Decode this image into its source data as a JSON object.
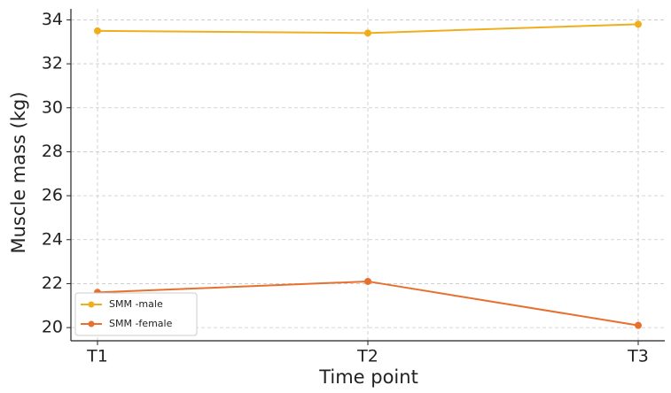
{
  "chart_data": {
    "type": "line",
    "xlabel": "Time point",
    "ylabel": "Muscle mass (kg)",
    "categories": [
      "T1",
      "T2",
      "T3"
    ],
    "series": [
      {
        "name": "SMM -male",
        "color": "#f0ae1c",
        "values": [
          33.5,
          33.4,
          33.8
        ]
      },
      {
        "name": "SMM -female",
        "color": "#e8702e",
        "values": [
          21.6,
          22.1,
          20.1
        ]
      }
    ],
    "ylim": [
      19.4,
      34.5
    ],
    "yticks": [
      20,
      22,
      24,
      26,
      28,
      30,
      32,
      34
    ],
    "grid": true,
    "legend": "lower left"
  }
}
